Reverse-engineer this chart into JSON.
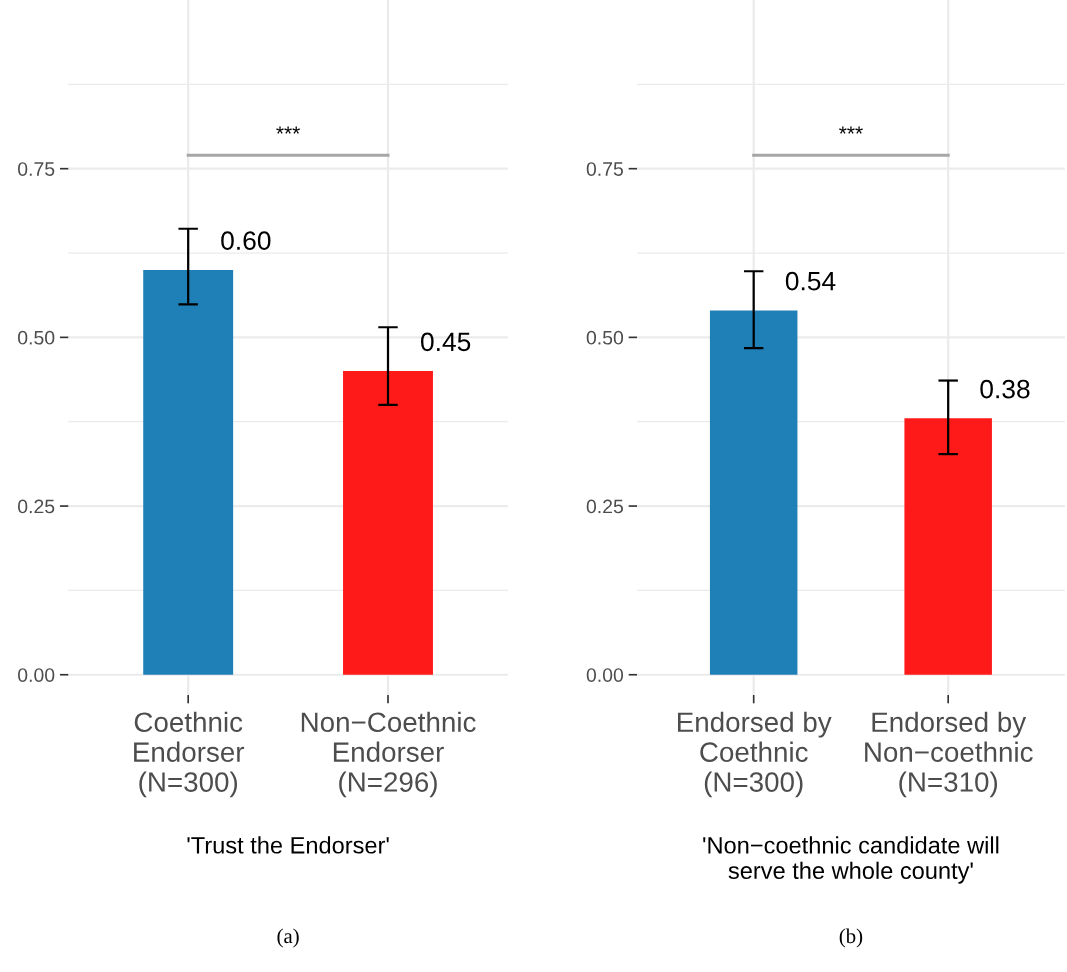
{
  "chart_data": [
    {
      "type": "bar",
      "xlabel": "'Trust the Endorser'",
      "categories": [
        "Coethnic\nEndorser\n(N=300)",
        "Non−Coethnic\nEndorser\n(N=296)"
      ],
      "values": [
        0.6,
        0.45
      ],
      "colors": [
        "#1f80b8",
        "#ff1a1a"
      ],
      "errors": [
        [
          0.549,
          0.661
        ],
        [
          0.4,
          0.515
        ]
      ],
      "ylim": [
        -0.03,
        1.0
      ],
      "yticks": [
        {
          "value": 0,
          "label": "0.00"
        },
        {
          "value": 0.25,
          "label": "0.25"
        },
        {
          "value": 0.5,
          "label": "0.50"
        },
        {
          "value": 0.75,
          "label": "0.75"
        }
      ],
      "grid": true,
      "value_labels": [
        "0.60",
        "0.45"
      ],
      "ref_lines": [
        {
          "axis": "y",
          "value": 0.77,
          "color": "#a6a6a6"
        }
      ],
      "annotations": [
        "***",
        "(a)"
      ]
    },
    {
      "type": "bar",
      "xlabel": "'Non−coethnic candidate will\nserve the whole county'",
      "categories": [
        "Endorsed by\nCoethnic\n(N=300)",
        "Endorsed by\nNon−coethnic\n(N=310)"
      ],
      "values": [
        0.54,
        0.38
      ],
      "colors": [
        "#1f80b8",
        "#ff1a1a"
      ],
      "errors": [
        [
          0.484,
          0.598
        ],
        [
          0.327,
          0.436
        ]
      ],
      "ylim": [
        -0.03,
        1.0
      ],
      "yticks": [
        {
          "value": 0,
          "label": "0.00"
        },
        {
          "value": 0.25,
          "label": "0.25"
        },
        {
          "value": 0.5,
          "label": "0.50"
        },
        {
          "value": 0.75,
          "label": "0.75"
        }
      ],
      "grid": true,
      "value_labels": [
        "0.54",
        "0.38"
      ],
      "ref_lines": [
        {
          "axis": "y",
          "value": 0.77,
          "color": "#a6a6a6"
        }
      ],
      "annotations": [
        "***",
        "(b)"
      ]
    }
  ]
}
